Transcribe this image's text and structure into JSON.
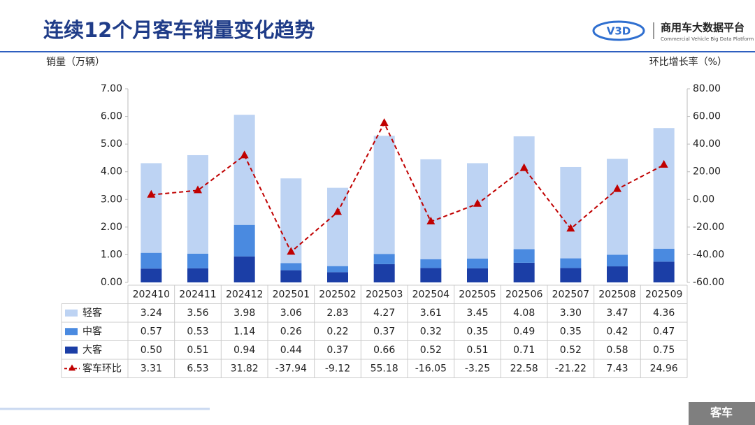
{
  "header": {
    "title": "连续12个月客车销量变化趋势",
    "logo_mark": "V3D",
    "logo_name": "商用车大数据平台",
    "logo_sub": "Commercial Vehicle Big Data Platform"
  },
  "footer": {
    "tag": "客车"
  },
  "chart_data": {
    "type": "bar",
    "y_label": "销量（万辆）",
    "y2_label": "环比增长率（%）",
    "categories": [
      "202410",
      "202411",
      "202412",
      "202501",
      "202502",
      "202503",
      "202504",
      "202505",
      "202506",
      "202507",
      "202508",
      "202509"
    ],
    "series": [
      {
        "name": "轻客",
        "color": "#bdd3f3",
        "values": [
          3.24,
          3.56,
          3.98,
          3.06,
          2.83,
          4.27,
          3.61,
          3.45,
          4.08,
          3.3,
          3.47,
          4.36
        ],
        "value_labels": [
          "3.24",
          "3.56",
          "3.98",
          "3.06",
          "2.83",
          "4.27",
          "3.61",
          "3.45",
          "4.08",
          "3.30",
          "3.47",
          "4.36"
        ]
      },
      {
        "name": "中客",
        "color": "#4a8ae0",
        "values": [
          0.57,
          0.53,
          1.14,
          0.26,
          0.22,
          0.37,
          0.32,
          0.35,
          0.49,
          0.35,
          0.42,
          0.47
        ],
        "value_labels": [
          "0.57",
          "0.53",
          "1.14",
          "0.26",
          "0.22",
          "0.37",
          "0.32",
          "0.35",
          "0.49",
          "0.35",
          "0.42",
          "0.47"
        ]
      },
      {
        "name": "大客",
        "color": "#1b3ea6",
        "values": [
          0.5,
          0.51,
          0.94,
          0.44,
          0.37,
          0.66,
          0.52,
          0.51,
          0.71,
          0.52,
          0.58,
          0.75
        ],
        "value_labels": [
          "0.50",
          "0.51",
          "0.94",
          "0.44",
          "0.37",
          "0.66",
          "0.52",
          "0.51",
          "0.71",
          "0.52",
          "0.58",
          "0.75"
        ]
      },
      {
        "name": "客车环比",
        "type": "line",
        "axis": "y2",
        "color": "#c00000",
        "values": [
          3.31,
          6.53,
          31.82,
          -37.94,
          -9.12,
          55.18,
          -16.05,
          -3.25,
          22.58,
          -21.22,
          7.43,
          24.96
        ],
        "value_labels": [
          "3.31",
          "6.53",
          "31.82",
          "-37.94",
          "-9.12",
          "55.18",
          "-16.05",
          "-3.25",
          "22.58",
          "-21.22",
          "7.43",
          "24.96"
        ]
      }
    ],
    "ylim": [
      0,
      7
    ],
    "yticks": [
      {
        "value": 0,
        "label": "0.00"
      },
      {
        "value": 1,
        "label": "1.00"
      },
      {
        "value": 2,
        "label": "2.00"
      },
      {
        "value": 3,
        "label": "3.00"
      },
      {
        "value": 4,
        "label": "4.00"
      },
      {
        "value": 5,
        "label": "5.00"
      },
      {
        "value": 6,
        "label": "6.00"
      },
      {
        "value": 7,
        "label": "7.00"
      }
    ],
    "y2lim": [
      -60,
      80
    ],
    "y2ticks": [
      {
        "value": -60,
        "label": "-60.00"
      },
      {
        "value": -40,
        "label": "-40.00"
      },
      {
        "value": -20,
        "label": "-20.00"
      },
      {
        "value": 0,
        "label": "0.00"
      },
      {
        "value": 20,
        "label": "20.00"
      },
      {
        "value": 40,
        "label": "40.00"
      },
      {
        "value": 60,
        "label": "60.00"
      },
      {
        "value": 80,
        "label": "80.00"
      }
    ]
  }
}
